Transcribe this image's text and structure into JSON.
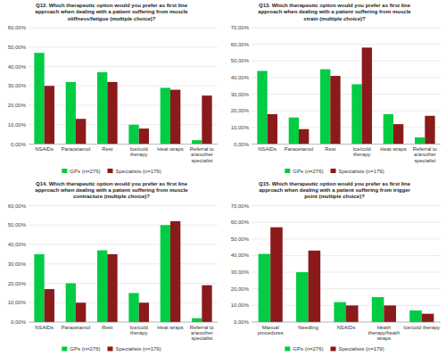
{
  "chart_data": [
    {
      "type": "bar",
      "title": "Q12. Which therapeutic option would you prefer as first line\napproach when dealing with a patient suffering from muscle\nstiffness/fatigue (multiple choice)?",
      "categories": [
        "NSAIDs",
        "Paracetamol",
        "Rest",
        "Ice/cold\ntherapy",
        "Heat wraps",
        "Referral to\na/another\nspecialist"
      ],
      "series": [
        {
          "name": "GPs (n=276)",
          "color": "#00cc44",
          "values": [
            0.47,
            0.32,
            0.37,
            0.1,
            0.29,
            0.02
          ]
        },
        {
          "name": "Specialists (n=179)",
          "color": "#8b1a1a",
          "values": [
            0.3,
            0.13,
            0.32,
            0.08,
            0.28,
            0.25
          ]
        }
      ],
      "ylim": [
        0,
        0.6
      ],
      "yticks": [
        {
          "value": 0,
          "label": "0,00%"
        },
        {
          "value": 0.1,
          "label": "10,00%"
        },
        {
          "value": 0.2,
          "label": "20,00%"
        },
        {
          "value": 0.3,
          "label": "30,00%"
        },
        {
          "value": 0.4,
          "label": "40,00%"
        },
        {
          "value": 0.5,
          "label": "50,00%"
        },
        {
          "value": 0.6,
          "label": "60,00%"
        }
      ],
      "grid": true,
      "legend": "bottom"
    },
    {
      "type": "bar",
      "title": "Q13. Which therapeutic option would you prefer as first line\napproach when dealing with a patient suffering from muscle\nstrain (multiple choice)?",
      "categories": [
        "NSAIDs",
        "Paracetamol",
        "Rest",
        "Ice/cold\ntherapy",
        "Heat wraps",
        "Referral to\na/another\nspecialist"
      ],
      "series": [
        {
          "name": "GPs (n=276)",
          "color": "#00cc44",
          "values": [
            0.44,
            0.16,
            0.45,
            0.36,
            0.18,
            0.04
          ]
        },
        {
          "name": "Specialists (n=179)",
          "color": "#8b1a1a",
          "values": [
            0.18,
            0.09,
            0.41,
            0.58,
            0.12,
            0.17
          ]
        }
      ],
      "ylim": [
        0,
        0.7
      ],
      "yticks": [
        {
          "value": 0,
          "label": "0,00%"
        },
        {
          "value": 0.1,
          "label": "10,00%"
        },
        {
          "value": 0.2,
          "label": "20,00%"
        },
        {
          "value": 0.3,
          "label": "30,00%"
        },
        {
          "value": 0.4,
          "label": "40,00%"
        },
        {
          "value": 0.5,
          "label": "50,00%"
        },
        {
          "value": 0.6,
          "label": "60,00%"
        },
        {
          "value": 0.7,
          "label": "70,00%"
        }
      ],
      "grid": true,
      "legend": "bottom"
    },
    {
      "type": "bar",
      "title": "Q14. Which therapeutic option would you prefer as first line\napproach when dealing with a patient suffering from muscle\ncontracture (multiple choice)?",
      "categories": [
        "NSAIDs",
        "Paracetamol",
        "Rest",
        "Ice/cold\ntherapy",
        "Heat wraps",
        "Referral to\na/another\nspecialist"
      ],
      "series": [
        {
          "name": "GPs (n=276)",
          "color": "#00cc44",
          "values": [
            0.35,
            0.2,
            0.37,
            0.15,
            0.5,
            0.02
          ]
        },
        {
          "name": "Specialists (n=179)",
          "color": "#8b1a1a",
          "values": [
            0.17,
            0.1,
            0.35,
            0.1,
            0.52,
            0.19
          ]
        }
      ],
      "ylim": [
        0,
        0.6
      ],
      "yticks": [
        {
          "value": 0,
          "label": "0,00%"
        },
        {
          "value": 0.1,
          "label": "10,00%"
        },
        {
          "value": 0.2,
          "label": "20,00%"
        },
        {
          "value": 0.3,
          "label": "30,00%"
        },
        {
          "value": 0.4,
          "label": "40,00%"
        },
        {
          "value": 0.5,
          "label": "50,00%"
        },
        {
          "value": 0.6,
          "label": "60,00%"
        }
      ],
      "grid": true,
      "legend": "bottom"
    },
    {
      "type": "bar",
      "title": "Q15. Which therapeutic option would you prefer as first line\napproach when dealing with a patient suffering from trigger\npoint (multiple choice)?",
      "categories": [
        "Manual\nprocedures",
        "Needling",
        "NSAIDs",
        "Heath\ntherapy/heath\nwraps",
        "Ice/cold therapy"
      ],
      "series": [
        {
          "name": "GPs (n=276)",
          "color": "#00cc44",
          "values": [
            0.41,
            0.3,
            0.12,
            0.15,
            0.07
          ]
        },
        {
          "name": "Specialists (n=179)",
          "color": "#8b1a1a",
          "values": [
            0.57,
            0.43,
            0.1,
            0.1,
            0.05
          ]
        }
      ],
      "ylim": [
        0,
        0.7
      ],
      "yticks": [
        {
          "value": 0,
          "label": "0,00%"
        },
        {
          "value": 0.1,
          "label": "10,00%"
        },
        {
          "value": 0.2,
          "label": "20,00%"
        },
        {
          "value": 0.3,
          "label": "30,00%"
        },
        {
          "value": 0.4,
          "label": "40,00%"
        },
        {
          "value": 0.5,
          "label": "50,00%"
        },
        {
          "value": 0.6,
          "label": "60,00%"
        },
        {
          "value": 0.7,
          "label": "70,00%"
        }
      ],
      "grid": true,
      "legend": "bottom"
    }
  ]
}
